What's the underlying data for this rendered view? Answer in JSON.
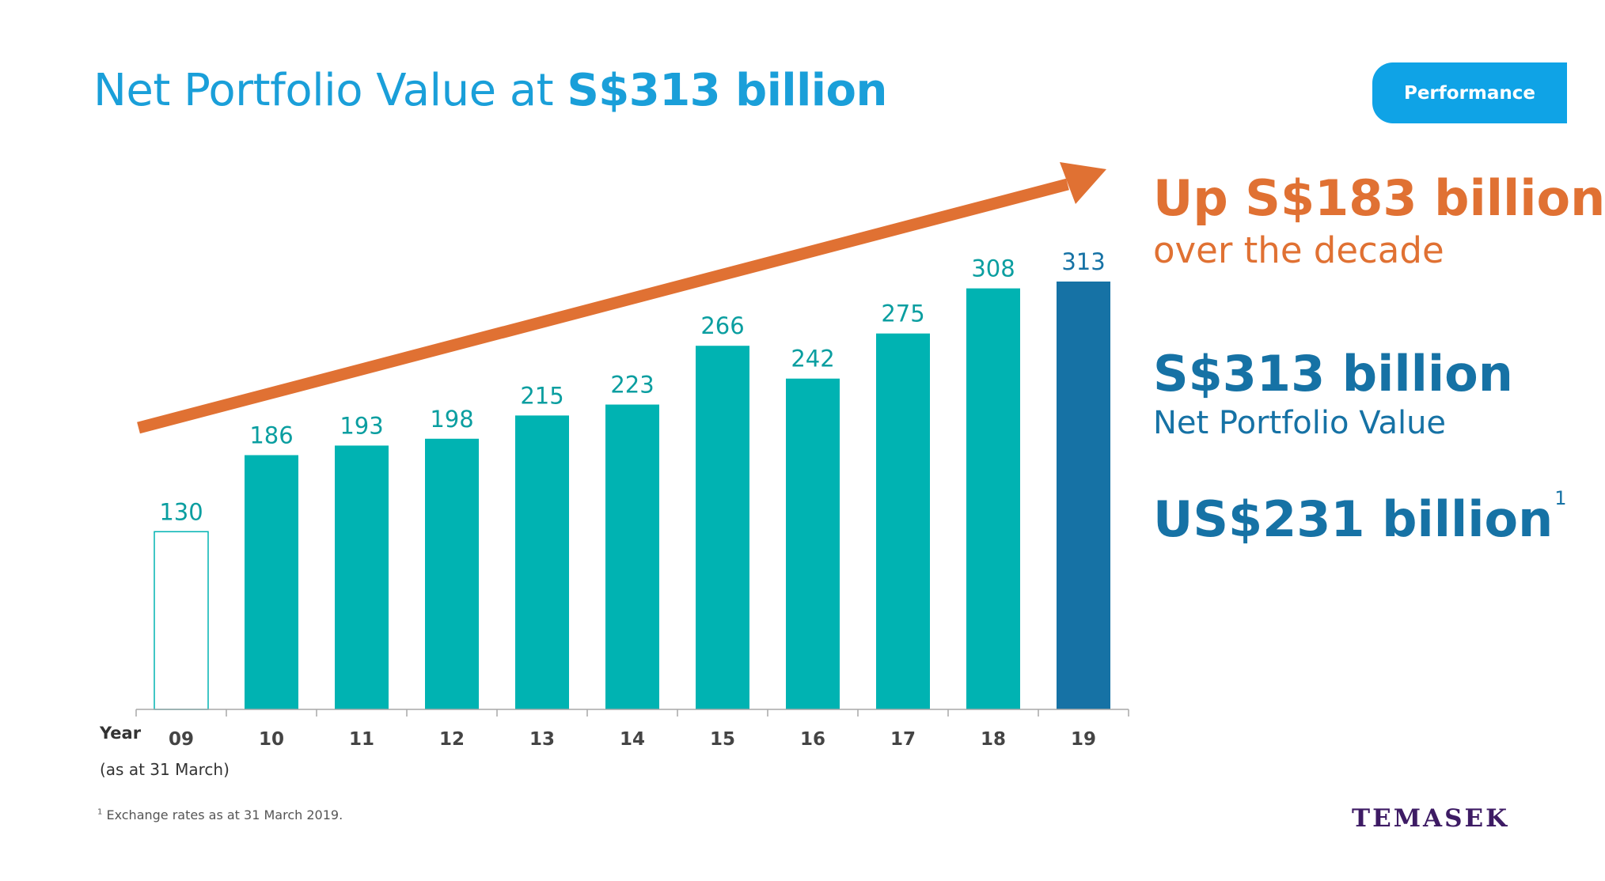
{
  "title": {
    "prefix": "Net Portfolio Value at ",
    "highlight": "S$313 billion"
  },
  "tab": {
    "label": "Performance"
  },
  "side_panel": {
    "growth_headline": "Up S$183 billion",
    "growth_subline": "over the decade",
    "npv_value": "S$313 billion",
    "npv_label": "Net Portfolio Value",
    "usd_value": "US$231 billion",
    "usd_footnote_mark": "1"
  },
  "footnote": {
    "mark": "1",
    "text": " Exchange rates as at 31 March 2019."
  },
  "logo": {
    "text": "TEMASEK"
  },
  "colors": {
    "title_blue": "#1a9fd9",
    "tab_blue": "#0fa3e6",
    "bar_teal": "#00b3b2",
    "bar_dark_blue": "#1672a5",
    "label_teal": "#0a9ea0",
    "arrow_orange": "#e07133",
    "logo_purple": "#3d1b64"
  },
  "chart_data": {
    "type": "bar",
    "x_axis_title": "Year",
    "x_axis_note": "(as at 31 March)",
    "categories": [
      "09",
      "10",
      "11",
      "12",
      "13",
      "14",
      "15",
      "16",
      "17",
      "18",
      "19"
    ],
    "values": [
      130,
      186,
      193,
      198,
      215,
      223,
      266,
      242,
      275,
      308,
      313
    ],
    "data_labels": [
      "130",
      "186",
      "193",
      "198",
      "215",
      "223",
      "266",
      "242",
      "275",
      "308",
      "313"
    ],
    "bar_styles": [
      "outline",
      "teal",
      "teal",
      "teal",
      "teal",
      "teal",
      "teal",
      "teal",
      "teal",
      "teal",
      "dark-blue"
    ],
    "ylim": [
      0,
      313
    ],
    "grid": false,
    "legend": "none",
    "annotation": "upward trend arrow"
  }
}
